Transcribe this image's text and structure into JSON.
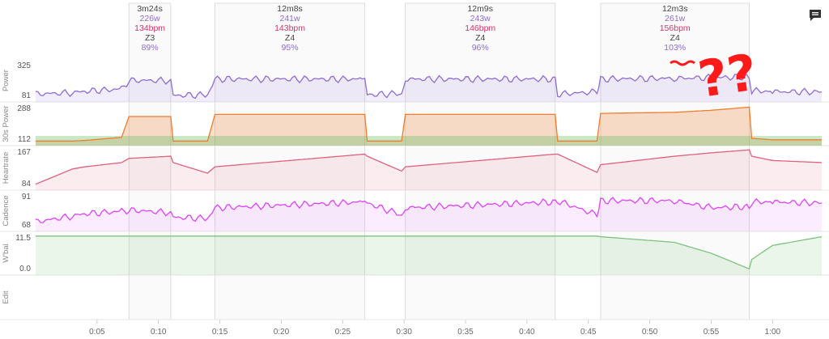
{
  "app": {
    "comment_icon": "comment-icon"
  },
  "chart_data": {
    "type": "line",
    "x_axis": {
      "ticks": [
        "0:05",
        "0:10",
        "0:15",
        "0:20",
        "0:25",
        "0:30",
        "0:35",
        "0:40",
        "0:45",
        "0:50",
        "0:55",
        "1:00"
      ],
      "range_min": [
        0,
        64
      ]
    },
    "panels": [
      {
        "name": "Power",
        "yticks": [
          325,
          81
        ],
        "color": "#8e6bd6"
      },
      {
        "name": "30s Power",
        "yticks": [
          288,
          112
        ],
        "color": "#f07c2b"
      },
      {
        "name": "Heartrate",
        "yticks": [
          167,
          84
        ],
        "color": "#e0607e"
      },
      {
        "name": "Cadence",
        "yticks": [
          91,
          68
        ],
        "color": "#e040fb"
      },
      {
        "name": "W'bal",
        "yticks": [
          "11.5",
          "0.0"
        ],
        "color": "#7cc47c"
      },
      {
        "name": "Edit",
        "yticks": [],
        "color": "#999999"
      }
    ],
    "intervals": [
      {
        "duration": "3m24s",
        "power": "226w",
        "hr": "134bpm",
        "zone": "Z3",
        "pct": "89%",
        "start_min": 7.6,
        "end_min": 11.0
      },
      {
        "duration": "12m8s",
        "power": "241w",
        "hr": "143bpm",
        "zone": "Z4",
        "pct": "95%",
        "start_min": 14.6,
        "end_min": 26.8
      },
      {
        "duration": "12m9s",
        "power": "243w",
        "hr": "146bpm",
        "zone": "Z4",
        "pct": "96%",
        "start_min": 30.1,
        "end_min": 42.3
      },
      {
        "duration": "12m3s",
        "power": "261w",
        "hr": "156bpm",
        "zone": "Z4",
        "pct": "103%",
        "start_min": 46.0,
        "end_min": 58.1
      }
    ],
    "series_minutes": [
      0,
      3,
      4,
      7,
      7.6,
      11,
      11.2,
      14,
      14.6,
      26.8,
      27,
      29.8,
      30.1,
      42.3,
      42.5,
      45.7,
      46,
      52,
      55,
      58.1,
      58.3,
      60,
      64
    ],
    "power_w": [
      95,
      105,
      115,
      130,
      190,
      190,
      85,
      90,
      200,
      200,
      90,
      100,
      200,
      200,
      95,
      110,
      200,
      205,
      210,
      215,
      120,
      112,
      110
    ],
    "power30_w": [
      112,
      112,
      115,
      130,
      230,
      230,
      112,
      112,
      240,
      240,
      112,
      112,
      240,
      240,
      112,
      112,
      245,
      250,
      260,
      275,
      125,
      118,
      118
    ],
    "heartrate_bpm": [
      84,
      120,
      125,
      135,
      145,
      150,
      135,
      110,
      125,
      155,
      150,
      115,
      125,
      155,
      155,
      112,
      130,
      150,
      158,
      165,
      150,
      140,
      135
    ],
    "cadence_rpm": [
      68,
      73,
      75,
      77,
      78,
      76,
      72,
      71,
      80,
      85,
      84,
      74,
      80,
      85,
      86,
      74,
      86,
      86,
      80,
      81,
      85,
      85,
      84
    ],
    "wbal_kj": [
      11.5,
      11.5,
      11.5,
      11.5,
      11.5,
      11.5,
      11.5,
      11.5,
      11.5,
      11.5,
      11.5,
      11.5,
      11.5,
      11.5,
      11.5,
      11.5,
      11.3,
      9.5,
      6.0,
      1.0,
      4.0,
      8.5,
      11.3
    ],
    "annotation": "??"
  }
}
